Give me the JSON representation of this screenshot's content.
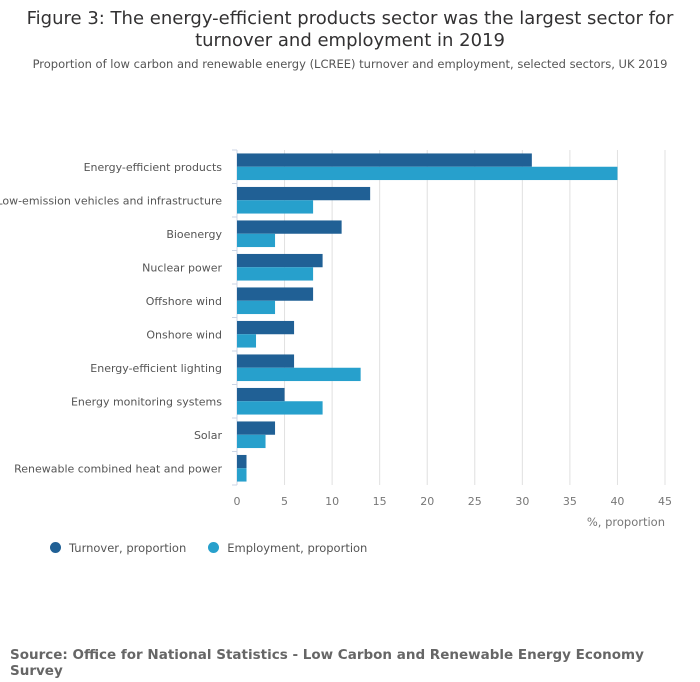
{
  "chart_data": {
    "type": "bar",
    "orientation": "horizontal",
    "title": "Figure 3: The energy-efficient products sector was the largest sector for turnover and employment in 2019",
    "subtitle": "Proportion of low carbon and renewable energy (LCREE) turnover and employment, selected sectors, UK 2019",
    "categories": [
      "Energy-efficient products",
      "Low-emission vehicles and infrastructure",
      "Bioenergy",
      "Nuclear power",
      "Offshore wind",
      "Onshore wind",
      "Energy-efficient lighting",
      "Energy monitoring systems",
      "Solar",
      "Renewable combined heat and power"
    ],
    "series": [
      {
        "name": "Turnover, proportion",
        "color": "#206095",
        "values": [
          31,
          14,
          11,
          9,
          8,
          6,
          6,
          5,
          4,
          1
        ]
      },
      {
        "name": "Employment, proportion",
        "color": "#27a0cc",
        "values": [
          40,
          8,
          4,
          8,
          4,
          2,
          13,
          9,
          3,
          1
        ]
      }
    ],
    "xlabel": "%, proportion",
    "xlim": [
      0,
      45
    ],
    "xticks": [
      0,
      5,
      10,
      15,
      20,
      25,
      30,
      35,
      40,
      45
    ],
    "grid": true,
    "legend": "bottom-left"
  },
  "source": "Source: Office for National Statistics - Low Carbon and Renewable Energy Economy Survey"
}
